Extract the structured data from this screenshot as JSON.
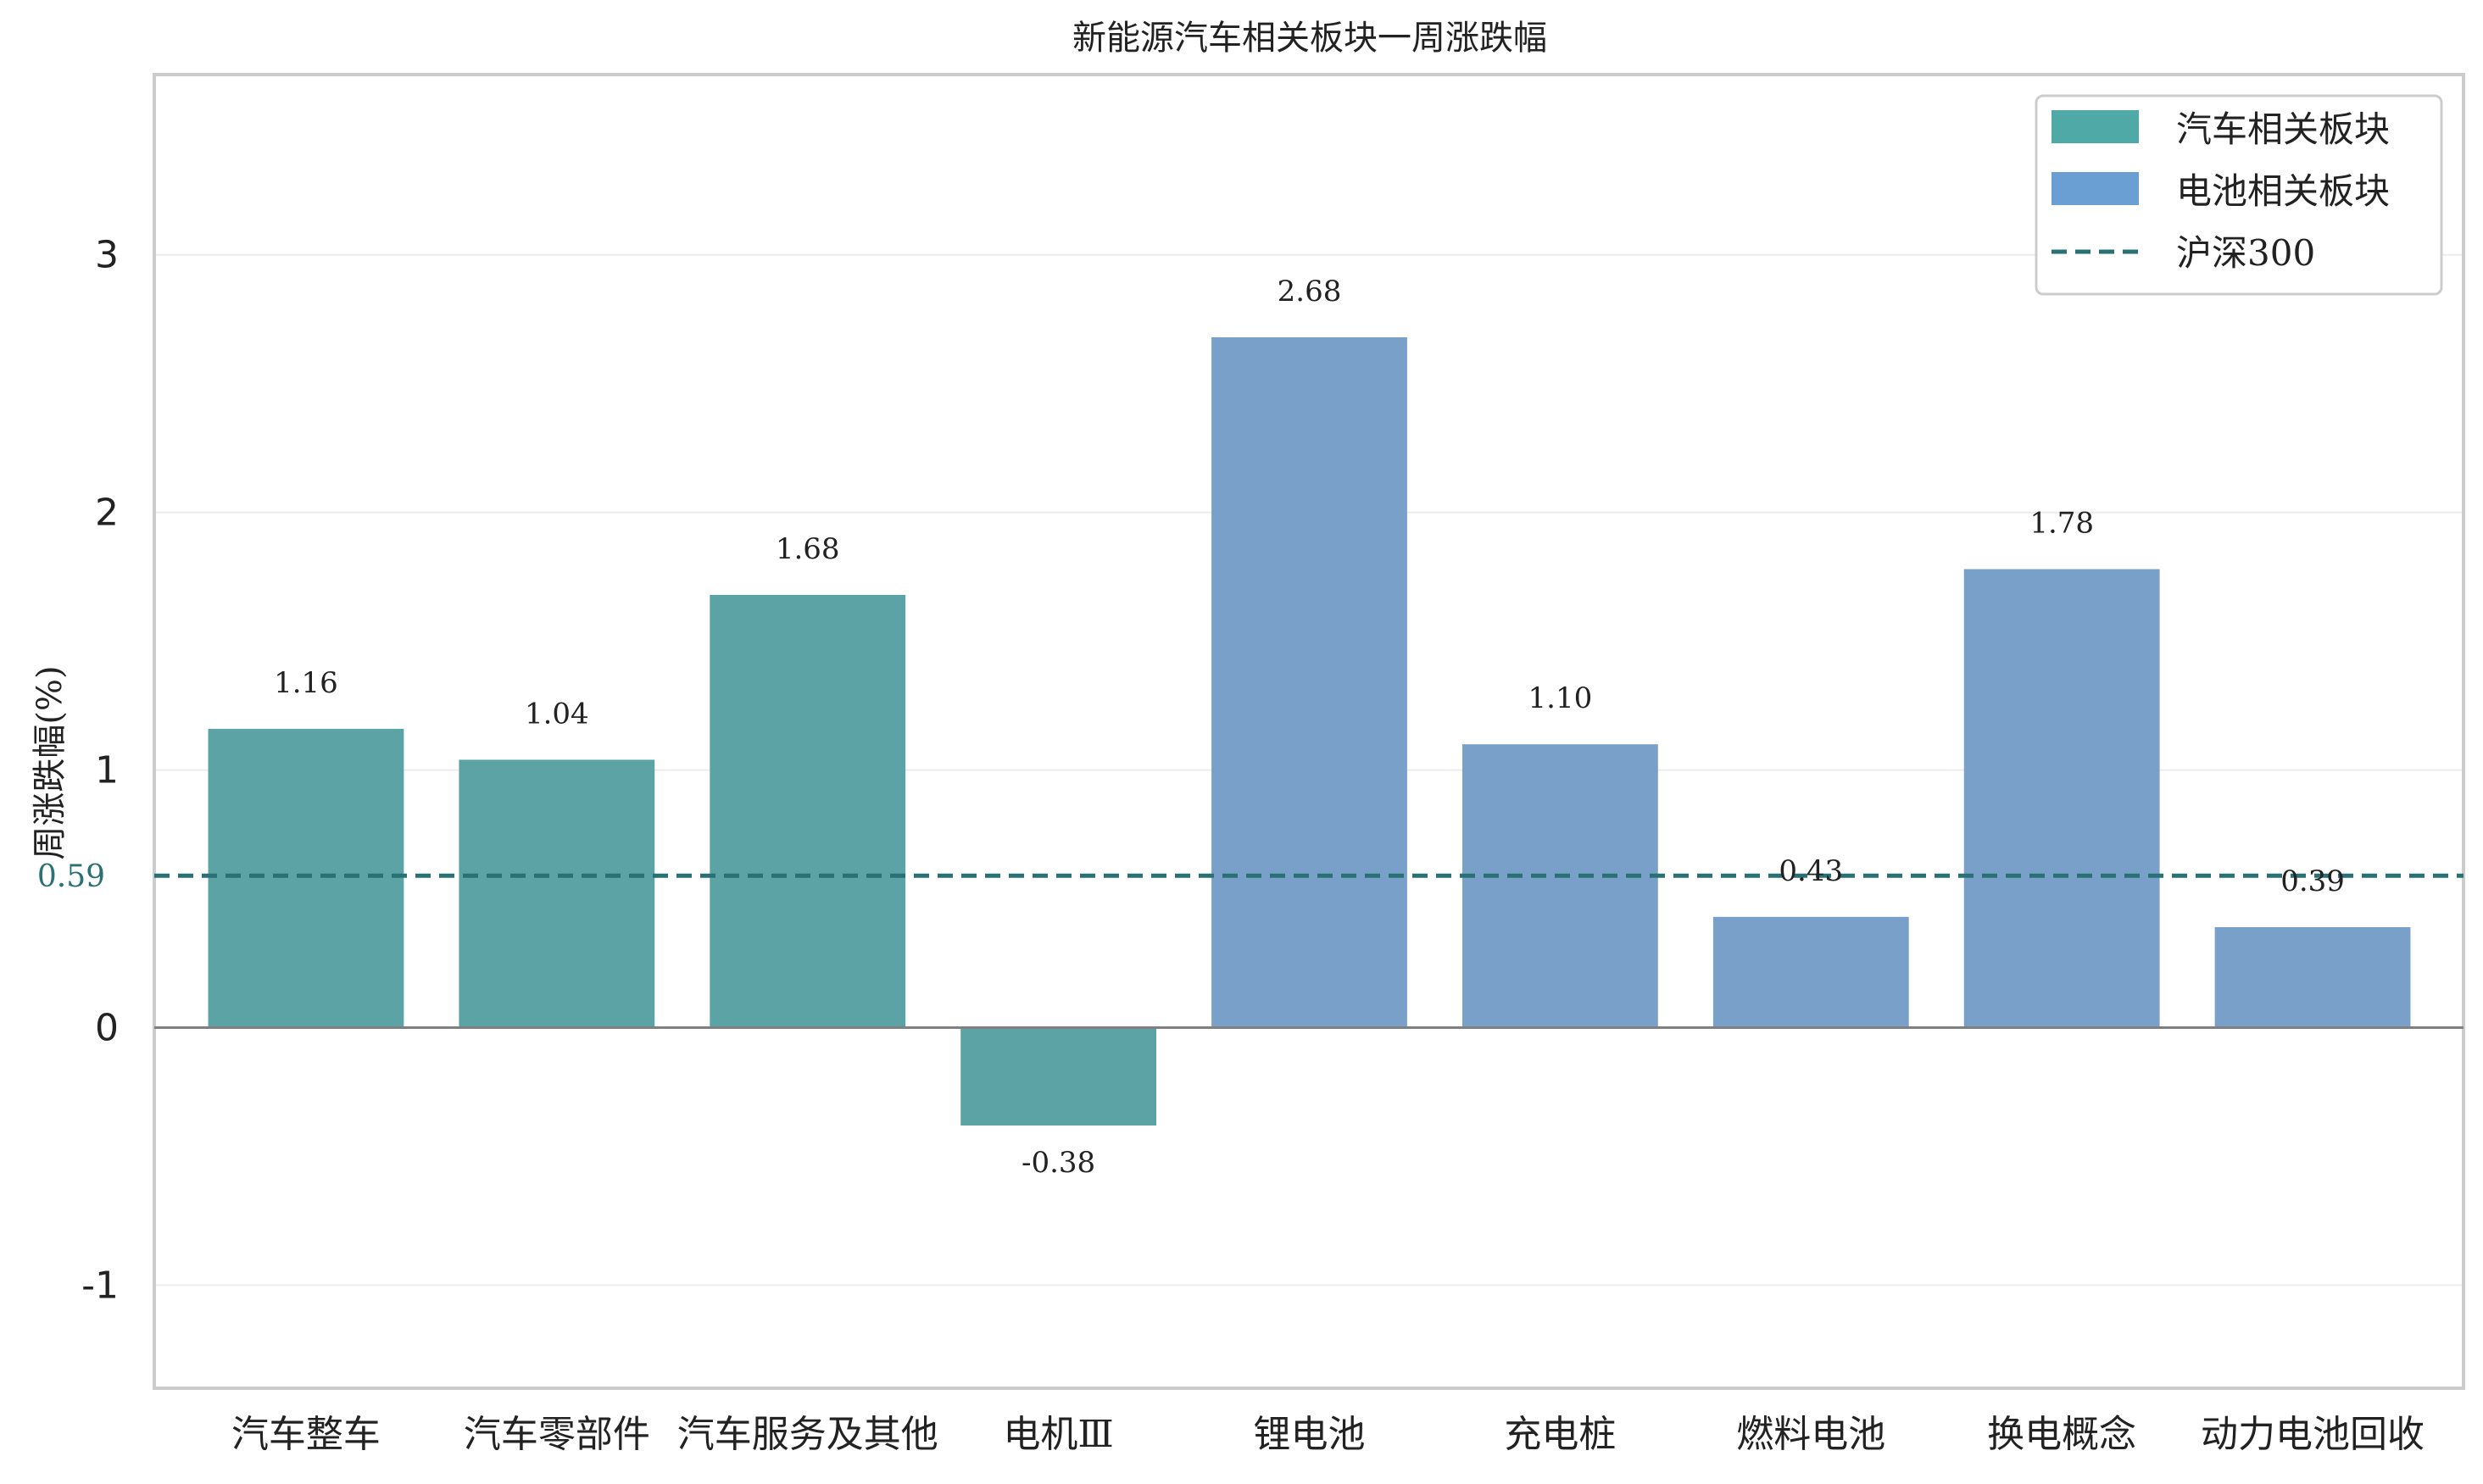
{
  "chart_data": {
    "type": "bar",
    "title": "新能源汽车相关板块一周涨跌幅",
    "xlabel": "",
    "ylabel": "周涨跌幅(%)",
    "ylim": [
      -1.4,
      3.7
    ],
    "yticks": [
      -1,
      0,
      1,
      2,
      3
    ],
    "categories": [
      "汽车整车",
      "汽车零部件",
      "汽车服务及其他",
      "电机Ⅲ",
      "锂电池",
      "充电桩",
      "燃料电池",
      "换电概念",
      "动力电池回收"
    ],
    "values": [
      1.16,
      1.04,
      1.68,
      -0.38,
      2.68,
      1.1,
      0.43,
      1.78,
      0.39
    ],
    "value_labels": [
      "1.16",
      "1.04",
      "1.68",
      "-0.38",
      "2.68",
      "1.10",
      "0.43",
      "1.78",
      "0.39"
    ],
    "groups": [
      0,
      0,
      0,
      0,
      1,
      1,
      1,
      1,
      1
    ],
    "group_names": [
      "汽车相关板块",
      "电池相关板块"
    ],
    "group_colors": [
      "#5ba3a5",
      "#78a0c8"
    ],
    "legend_patch_colors": [
      "#4fa9a6",
      "#6a9fd4"
    ],
    "reference_line": {
      "name": "沪深300",
      "value": 0.59,
      "label": "0.59",
      "color": "#2a7175"
    },
    "grid": true,
    "legend_position": "top-right"
  }
}
